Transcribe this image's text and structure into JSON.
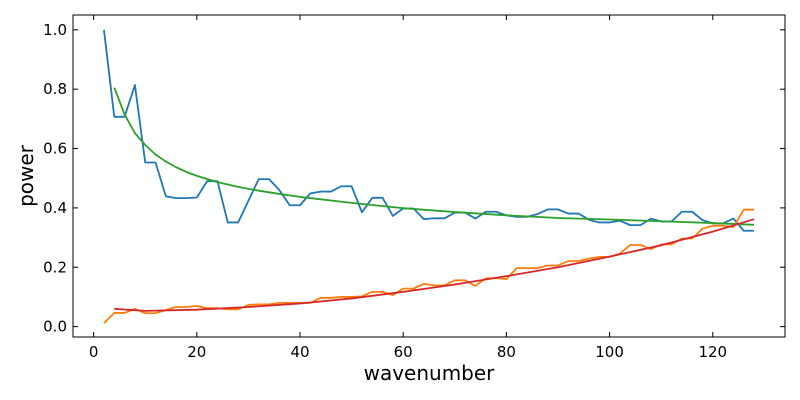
{
  "chart_data": {
    "type": "line",
    "xlabel": "wavenumber",
    "ylabel": "power",
    "xlim": [
      -4,
      134
    ],
    "ylim": [
      -0.035,
      1.05
    ],
    "x_ticks": [
      0,
      20,
      40,
      60,
      80,
      100,
      120
    ],
    "x_tick_labels": [
      "0",
      "20",
      "40",
      "60",
      "80",
      "100",
      "120"
    ],
    "y_ticks": [
      0.0,
      0.2,
      0.4,
      0.6,
      0.8,
      1.0
    ],
    "y_tick_labels": [
      "0.0",
      "0.2",
      "0.4",
      "0.6",
      "0.8",
      "1.0"
    ],
    "grid": false,
    "series": [
      {
        "color": "#1f77b4",
        "x": [
          2,
          4,
          6,
          8,
          10,
          12,
          14,
          16,
          18,
          20,
          22,
          24,
          26,
          28,
          30,
          32,
          34,
          36,
          38,
          40,
          42,
          44,
          46,
          48,
          50,
          52,
          54,
          56,
          58,
          60,
          62,
          64,
          66,
          68,
          70,
          72,
          74,
          76,
          78,
          80,
          82,
          84,
          86,
          88,
          90,
          92,
          94,
          96,
          98,
          100,
          102,
          104,
          106,
          108,
          110,
          112,
          114,
          116,
          118,
          120,
          122,
          124,
          126,
          128
        ],
        "y": [
          1.0,
          0.707,
          0.707,
          0.814,
          0.553,
          0.553,
          0.439,
          0.433,
          0.433,
          0.435,
          0.49,
          0.49,
          0.351,
          0.351,
          0.424,
          0.497,
          0.497,
          0.46,
          0.409,
          0.409,
          0.449,
          0.455,
          0.455,
          0.473,
          0.473,
          0.385,
          0.434,
          0.434,
          0.373,
          0.398,
          0.398,
          0.362,
          0.365,
          0.365,
          0.384,
          0.384,
          0.364,
          0.387,
          0.387,
          0.375,
          0.37,
          0.37,
          0.379,
          0.395,
          0.395,
          0.381,
          0.381,
          0.36,
          0.351,
          0.351,
          0.357,
          0.342,
          0.342,
          0.364,
          0.354,
          0.354,
          0.387,
          0.387,
          0.359,
          0.348,
          0.348,
          0.364,
          0.323,
          0.323
        ]
      },
      {
        "color": "#ff7f0e",
        "x": [
          2,
          4,
          6,
          8,
          10,
          12,
          14,
          16,
          18,
          20,
          22,
          24,
          26,
          28,
          30,
          32,
          34,
          36,
          38,
          40,
          42,
          44,
          46,
          48,
          50,
          52,
          54,
          56,
          58,
          60,
          62,
          64,
          66,
          68,
          70,
          72,
          74,
          76,
          78,
          80,
          82,
          84,
          86,
          88,
          90,
          92,
          94,
          96,
          98,
          100,
          102,
          104,
          106,
          108,
          110,
          112,
          114,
          116,
          118,
          120,
          122,
          124,
          126,
          128
        ],
        "y": [
          0.012,
          0.046,
          0.046,
          0.06,
          0.045,
          0.045,
          0.056,
          0.066,
          0.066,
          0.07,
          0.062,
          0.062,
          0.058,
          0.058,
          0.073,
          0.075,
          0.075,
          0.08,
          0.08,
          0.08,
          0.08,
          0.097,
          0.097,
          0.1,
          0.1,
          0.102,
          0.117,
          0.117,
          0.106,
          0.128,
          0.128,
          0.144,
          0.139,
          0.139,
          0.156,
          0.156,
          0.137,
          0.163,
          0.163,
          0.16,
          0.197,
          0.197,
          0.197,
          0.206,
          0.206,
          0.221,
          0.221,
          0.229,
          0.235,
          0.235,
          0.246,
          0.275,
          0.275,
          0.261,
          0.277,
          0.277,
          0.297,
          0.297,
          0.33,
          0.34,
          0.34,
          0.335,
          0.394,
          0.394
        ]
      },
      {
        "color": "#2ca02c",
        "x": [
          4,
          6,
          8,
          10,
          12,
          14,
          16,
          18,
          20,
          24,
          28,
          32,
          36,
          40,
          50,
          60,
          70,
          80,
          90,
          100,
          110,
          120,
          128
        ],
        "y": [
          0.805,
          0.715,
          0.652,
          0.612,
          0.58,
          0.556,
          0.537,
          0.521,
          0.508,
          0.487,
          0.471,
          0.458,
          0.447,
          0.437,
          0.417,
          0.399,
          0.386,
          0.375,
          0.366,
          0.361,
          0.355,
          0.349,
          0.343
        ]
      },
      {
        "color": "#d62728",
        "x": [
          4,
          10,
          20,
          30,
          40,
          50,
          60,
          70,
          80,
          90,
          100,
          110,
          120,
          128
        ],
        "y": [
          0.06,
          0.053,
          0.057,
          0.066,
          0.078,
          0.095,
          0.117,
          0.142,
          0.17,
          0.2,
          0.236,
          0.274,
          0.32,
          0.362
        ]
      }
    ]
  }
}
